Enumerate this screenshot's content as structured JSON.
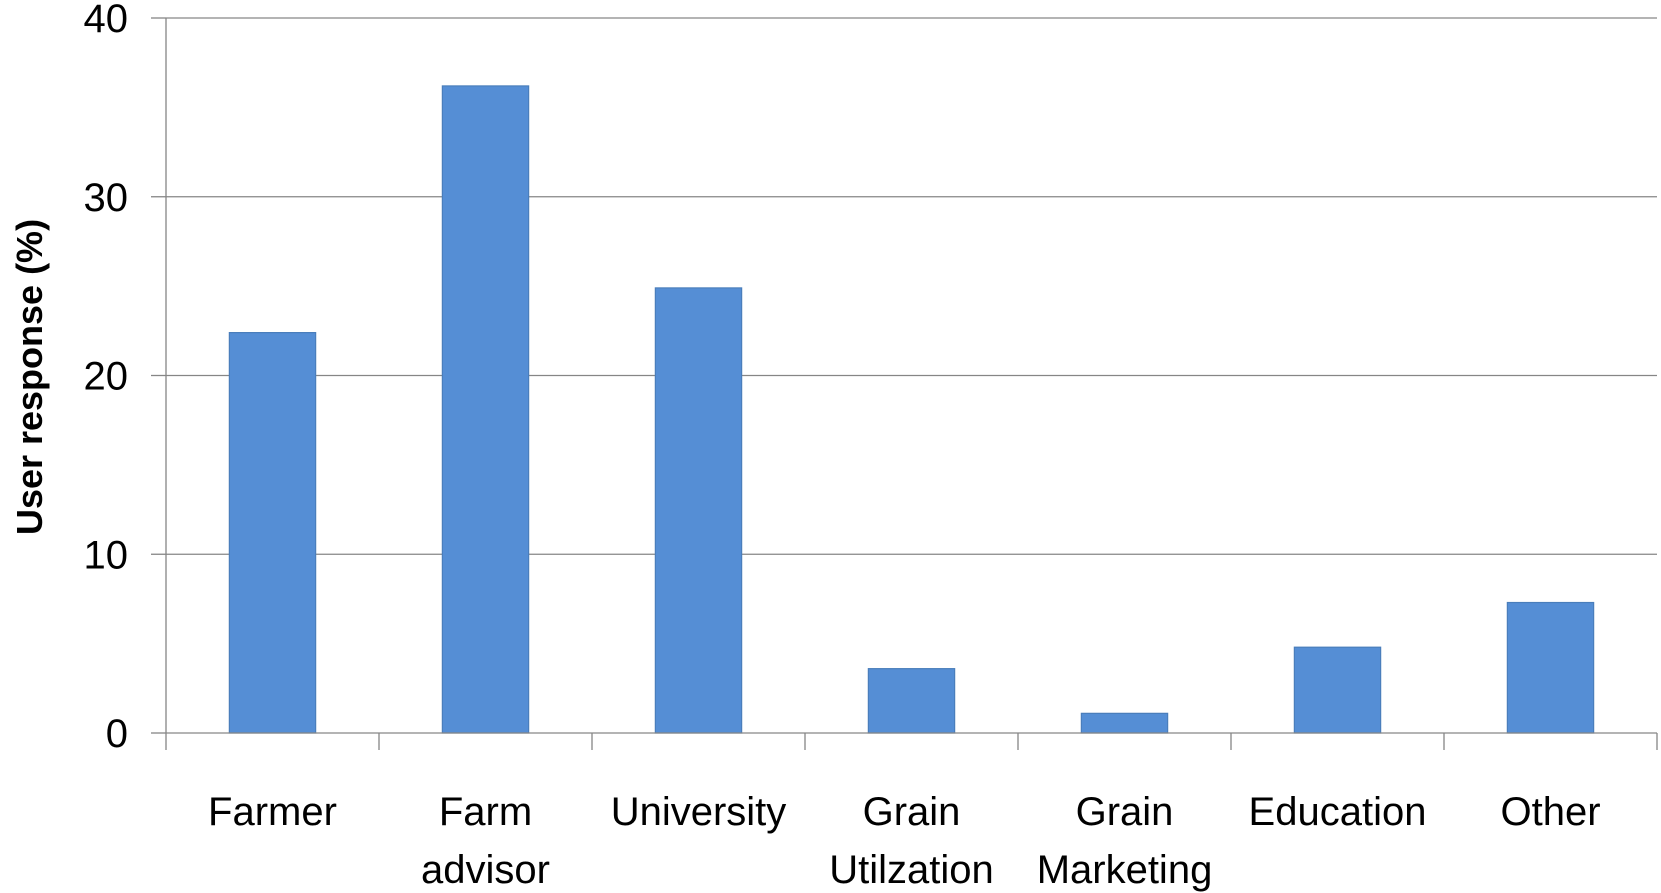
{
  "chart_data": {
    "type": "bar",
    "title": "",
    "xlabel": "",
    "ylabel": "User response (%)",
    "categories": [
      [
        "Farmer"
      ],
      [
        "Farm",
        "advisor"
      ],
      [
        "University"
      ],
      [
        "Grain",
        "Utilzation"
      ],
      [
        "Grain",
        "Marketing"
      ],
      [
        "Education"
      ],
      [
        "Other"
      ]
    ],
    "values": [
      22.4,
      36.2,
      24.9,
      3.6,
      1.1,
      4.8,
      7.3
    ],
    "ylim": [
      0,
      40
    ],
    "yticks": [
      "0",
      "10",
      "20",
      "30",
      "40"
    ],
    "grid": true,
    "legend": "none",
    "colors": {
      "bar_fill": "#558ED5",
      "bar_stroke": "#4A7EBB",
      "grid": "#868686",
      "axis": "#868686"
    }
  }
}
